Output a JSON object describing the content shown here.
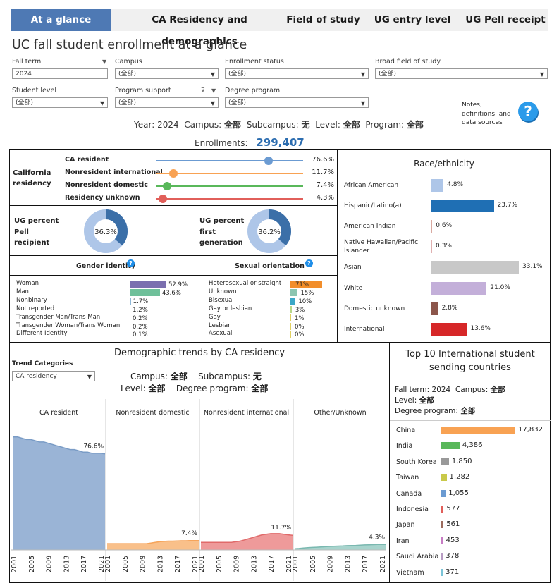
{
  "tabs": [
    "At a glance",
    "CA Residency and demographics",
    "Field of study",
    "UG entry level",
    "UG Pell receipt"
  ],
  "title": "UC fall student enrollment at a glance",
  "filters": {
    "fall_term": {
      "label": "Fall term",
      "value": "2024"
    },
    "campus": {
      "label": "Campus",
      "value": "(全部)"
    },
    "enrollment_status": {
      "label": "Enrollment status",
      "value": "(全部)"
    },
    "broad_field": {
      "label": "Broad field of study",
      "value": "(全部)"
    },
    "student_level": {
      "label": "Student level",
      "value": "(全部)"
    },
    "program_support": {
      "label": "Program support",
      "value": "(全部)"
    },
    "degree_program": {
      "label": "Degree program",
      "value": "(全部)"
    }
  },
  "notes_label": "Notes, definitions, and data sources",
  "summary": {
    "year_label": "Year:",
    "year": "2024",
    "campus_label": "Campus:",
    "campus": "全部",
    "subcampus_label": "Subcampus:",
    "subcampus": "无",
    "level_label": "Level:",
    "level": "全部",
    "program_label": "Program:",
    "program": "全部",
    "enroll_label": "Enrollments:",
    "enroll": "299,407"
  },
  "residency": {
    "title": "California residency",
    "items": [
      {
        "label": "CA resident",
        "value": "76.6%",
        "pct": 76.6,
        "color": "#6b9bd2"
      },
      {
        "label": "Nonresident international",
        "value": "11.7%",
        "pct": 11.7,
        "color": "#f8a253"
      },
      {
        "label": "Nonresident domestic",
        "value": "7.4%",
        "pct": 7.4,
        "color": "#59b85a"
      },
      {
        "label": "Residency unknown",
        "value": "4.3%",
        "pct": 4.3,
        "color": "#e15f5a"
      }
    ]
  },
  "pell": {
    "label": "UG percent Pell recipient",
    "value": "36.3%",
    "pct": 36.3
  },
  "firstgen": {
    "label": "UG percent first generation",
    "value": "36.2%",
    "pct": 36.2
  },
  "race": {
    "title": "Race/ethnicity",
    "items": [
      {
        "label": "African American",
        "value": "4.8%",
        "pct": 4.8,
        "color": "#aec6e8"
      },
      {
        "label": "Hispanic/Latino(a)",
        "value": "23.7%",
        "pct": 23.7,
        "color": "#1f6fb4"
      },
      {
        "label": "American Indian",
        "value": "0.6%",
        "pct": 0.6,
        "color": "#d9a9a0"
      },
      {
        "label": "Native Hawaiian/Pacific Islander",
        "value": "0.3%",
        "pct": 0.3,
        "color": "#e0b0b0"
      },
      {
        "label": "Asian",
        "value": "33.1%",
        "pct": 33.1,
        "color": "#c8c8c8"
      },
      {
        "label": "White",
        "value": "21.0%",
        "pct": 21.0,
        "color": "#c3afd9"
      },
      {
        "label": "Domestic unknown",
        "value": "2.8%",
        "pct": 2.8,
        "color": "#8c564b"
      },
      {
        "label": "International",
        "value": "13.6%",
        "pct": 13.6,
        "color": "#d62728"
      }
    ]
  },
  "gender": {
    "title": "Gender identity",
    "items": [
      {
        "label": "Woman",
        "value": "52.9%",
        "pct": 52.9,
        "color": "#7b6faf"
      },
      {
        "label": "Man",
        "value": "43.6%",
        "pct": 43.6,
        "color": "#6fc09a"
      },
      {
        "label": "Nonbinary",
        "value": "1.7%",
        "pct": 1.7,
        "color": "#8fb8d8"
      },
      {
        "label": "Not reported",
        "value": "1.2%",
        "pct": 1.2,
        "color": "#8fb8d8"
      },
      {
        "label": "Transgender Man/Trans Man",
        "value": "0.2%",
        "pct": 0.2,
        "color": "#8fb8d8"
      },
      {
        "label": "Transgender Woman/Trans Woman",
        "value": "0.2%",
        "pct": 0.2,
        "color": "#8fb8d8"
      },
      {
        "label": "Different Identity",
        "value": "0.1%",
        "pct": 0.1,
        "color": "#8fb8d8"
      }
    ]
  },
  "sexual": {
    "title": "Sexual orientation",
    "items": [
      {
        "label": "Heterosexual or straight",
        "value": "71%",
        "pct": 71,
        "color": "#f28e2b"
      },
      {
        "label": "Unknown",
        "value": "15%",
        "pct": 15,
        "color": "#8cc5b0"
      },
      {
        "label": "Bisexual",
        "value": "10%",
        "pct": 10,
        "color": "#3ba7c7"
      },
      {
        "label": "Gay or lesbian",
        "value": "3%",
        "pct": 3,
        "color": "#b8d88a"
      },
      {
        "label": "Gay",
        "value": "1%",
        "pct": 1,
        "color": "#e0d060"
      },
      {
        "label": "Lesbian",
        "value": "0%",
        "pct": 0,
        "color": "#e0d060"
      },
      {
        "label": "Asexual",
        "value": "0%",
        "pct": 0,
        "color": "#e0d060"
      }
    ]
  },
  "trends": {
    "title": "Demographic trends by CA residency",
    "category_label": "Trend Categories",
    "category_value": "CA residency",
    "campus_label": "Campus:",
    "campus": "全部",
    "subcampus_label": "Subcampus:",
    "subcampus": "无",
    "level_label": "Level:",
    "level": "全部",
    "program_label": "Degree program:",
    "program": "全部",
    "years": [
      "2001",
      "2005",
      "2009",
      "2013",
      "2017",
      "2021"
    ],
    "panels": [
      {
        "name": "CA resident",
        "end_label": "76.6%",
        "color": "#7a9cc6",
        "fill": "#9ab4d6",
        "values": [
          90,
          90,
          89,
          88,
          88,
          87,
          86,
          86,
          85,
          84,
          83,
          82,
          81,
          80,
          80,
          79,
          78,
          78,
          77,
          77,
          77,
          76.6
        ]
      },
      {
        "name": "Nonresident domestic",
        "end_label": "7.4%",
        "color": "#f6a45a",
        "fill": "#f9c08a",
        "values": [
          5,
          5,
          5,
          5,
          5,
          5,
          5,
          5,
          5,
          5,
          5.5,
          6,
          6.5,
          6.8,
          7,
          7,
          7.2,
          7.3,
          7.3,
          7.4,
          7.4,
          7.4
        ]
      },
      {
        "name": "Nonresident international",
        "end_label": "11.7%",
        "color": "#e06a6a",
        "fill": "#ee9a9a",
        "values": [
          6,
          6,
          6,
          6,
          6,
          6,
          6,
          6,
          6.5,
          7,
          8,
          9,
          10,
          11,
          12,
          12.5,
          13,
          13,
          13,
          12.5,
          12,
          11.7
        ]
      },
      {
        "name": "Other/Unknown",
        "end_label": "4.3%",
        "color": "#7ab8b0",
        "fill": "#a8d4cd",
        "values": [
          1,
          1.2,
          1.5,
          1.8,
          2,
          2.2,
          2.4,
          2.6,
          2.8,
          3,
          3.1,
          3.2,
          3.4,
          3.5,
          3.6,
          3.8,
          4,
          4.1,
          4.2,
          4.3,
          4.4,
          4.3
        ]
      }
    ],
    "ymax": 100
  },
  "intl": {
    "title": "Top 10 International student sending countries",
    "term_label": "Fall term:",
    "term": "2024",
    "campus_label": "Campus:",
    "campus": "全部",
    "level_label": "Level:",
    "level": "全部",
    "program_label": "Degree program:",
    "program": "全部",
    "items": [
      {
        "label": "China",
        "value": "17,832",
        "n": 17832,
        "color": "#f8a253"
      },
      {
        "label": "India",
        "value": "4,386",
        "n": 4386,
        "color": "#59b85a"
      },
      {
        "label": "South Korea",
        "value": "1,850",
        "n": 1850,
        "color": "#999999"
      },
      {
        "label": "Taiwan",
        "value": "1,282",
        "n": 1282,
        "color": "#c9c94a"
      },
      {
        "label": "Canada",
        "value": "1,055",
        "n": 1055,
        "color": "#6b9bd2"
      },
      {
        "label": "Indonesia",
        "value": "577",
        "n": 577,
        "color": "#e15f5a"
      },
      {
        "label": "Japan",
        "value": "561",
        "n": 561,
        "color": "#9c6b5e"
      },
      {
        "label": "Iran",
        "value": "453",
        "n": 453,
        "color": "#c77cc4"
      },
      {
        "label": "Saudi Arabia",
        "value": "378",
        "n": 378,
        "color": "#b89cc4"
      },
      {
        "label": "Vietnam",
        "value": "371",
        "n": 371,
        "color": "#7ac4d8"
      }
    ]
  },
  "chart_data": [
    {
      "type": "bar",
      "title": "Race/ethnicity",
      "categories": [
        "African American",
        "Hispanic/Latino(a)",
        "American Indian",
        "Native Hawaiian/Pacific Islander",
        "Asian",
        "White",
        "Domestic unknown",
        "International"
      ],
      "values": [
        4.8,
        23.7,
        0.6,
        0.3,
        33.1,
        21.0,
        2.8,
        13.6
      ]
    },
    {
      "type": "bar",
      "title": "Top 10 International student sending countries",
      "categories": [
        "China",
        "India",
        "South Korea",
        "Taiwan",
        "Canada",
        "Indonesia",
        "Japan",
        "Iran",
        "Saudi Arabia",
        "Vietnam"
      ],
      "values": [
        17832,
        4386,
        1850,
        1282,
        1055,
        577,
        561,
        453,
        378,
        371
      ]
    },
    {
      "type": "area",
      "title": "Demographic trends by CA residency",
      "series": [
        {
          "name": "CA resident",
          "end": 76.6
        },
        {
          "name": "Nonresident domestic",
          "end": 7.4
        },
        {
          "name": "Nonresident international",
          "end": 11.7
        },
        {
          "name": "Other/Unknown",
          "end": 4.3
        }
      ]
    }
  ]
}
